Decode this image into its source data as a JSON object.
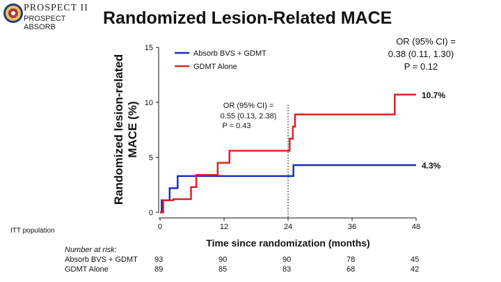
{
  "logo": {
    "line1": "PROSPECT II",
    "line2": "PROSPECT ABSORB"
  },
  "slide": {
    "title": "Randomized Lesion-Related MACE",
    "note": "ITT population"
  },
  "chart_data": {
    "type": "line",
    "ylabel_line1": "Randomized lesion-related",
    "ylabel_line2": "MACE (%)",
    "xlabel": "Time since randomization (months)",
    "xlim": [
      0,
      48
    ],
    "ylim": [
      0,
      15
    ],
    "xticks": [
      0,
      12,
      24,
      36,
      48
    ],
    "yticks": [
      0,
      5,
      10,
      15
    ],
    "grid": false,
    "legend_position": "top-left",
    "reference_line_x": 24,
    "series": [
      {
        "name": "Absorb BVS + GDMT",
        "color": "#1a2fbf",
        "step_points": [
          [
            0,
            0
          ],
          [
            0.3,
            0
          ],
          [
            0.3,
            1.1
          ],
          [
            1.8,
            1.1
          ],
          [
            1.8,
            2.2
          ],
          [
            3.3,
            2.2
          ],
          [
            3.3,
            3.3
          ],
          [
            25,
            3.3
          ],
          [
            25,
            4.3
          ],
          [
            48,
            4.3
          ]
        ],
        "end_label": "4.3%"
      },
      {
        "name": "GDMT Alone",
        "color": "#e02020",
        "step_points": [
          [
            0,
            0
          ],
          [
            0.6,
            0
          ],
          [
            0.6,
            1.1
          ],
          [
            2.5,
            1.1
          ],
          [
            2.5,
            1.2
          ],
          [
            5.8,
            1.2
          ],
          [
            5.8,
            2.3
          ],
          [
            6.8,
            2.3
          ],
          [
            6.8,
            3.4
          ],
          [
            10.8,
            3.4
          ],
          [
            10.8,
            4.5
          ],
          [
            13,
            4.5
          ],
          [
            13,
            5.6
          ],
          [
            24.3,
            5.6
          ],
          [
            24.3,
            6.7
          ],
          [
            24.9,
            6.7
          ],
          [
            24.9,
            7.8
          ],
          [
            25.3,
            7.8
          ],
          [
            25.3,
            8.9
          ],
          [
            44,
            8.9
          ],
          [
            44,
            10.7
          ],
          [
            48,
            10.7
          ]
        ],
        "end_label": "10.7%"
      }
    ],
    "annotations": [
      {
        "line1": "OR (95% CI) =",
        "line2": "0.55 (0.13, 2.38)",
        "line3": "P = 0.43"
      },
      {
        "line1": "OR (95% CI) =",
        "line2": "0.38 (0.11, 1.30)",
        "line3": "P = 0.12"
      }
    ],
    "risk_table": {
      "title": "Number at risk:",
      "times": [
        0,
        12,
        24,
        36,
        48
      ],
      "rows": [
        {
          "label": "Absorb BVS + GDMT",
          "values": [
            93,
            90,
            90,
            78,
            45
          ]
        },
        {
          "label": "GDMT Alone",
          "values": [
            89,
            85,
            83,
            68,
            42
          ]
        }
      ]
    }
  }
}
